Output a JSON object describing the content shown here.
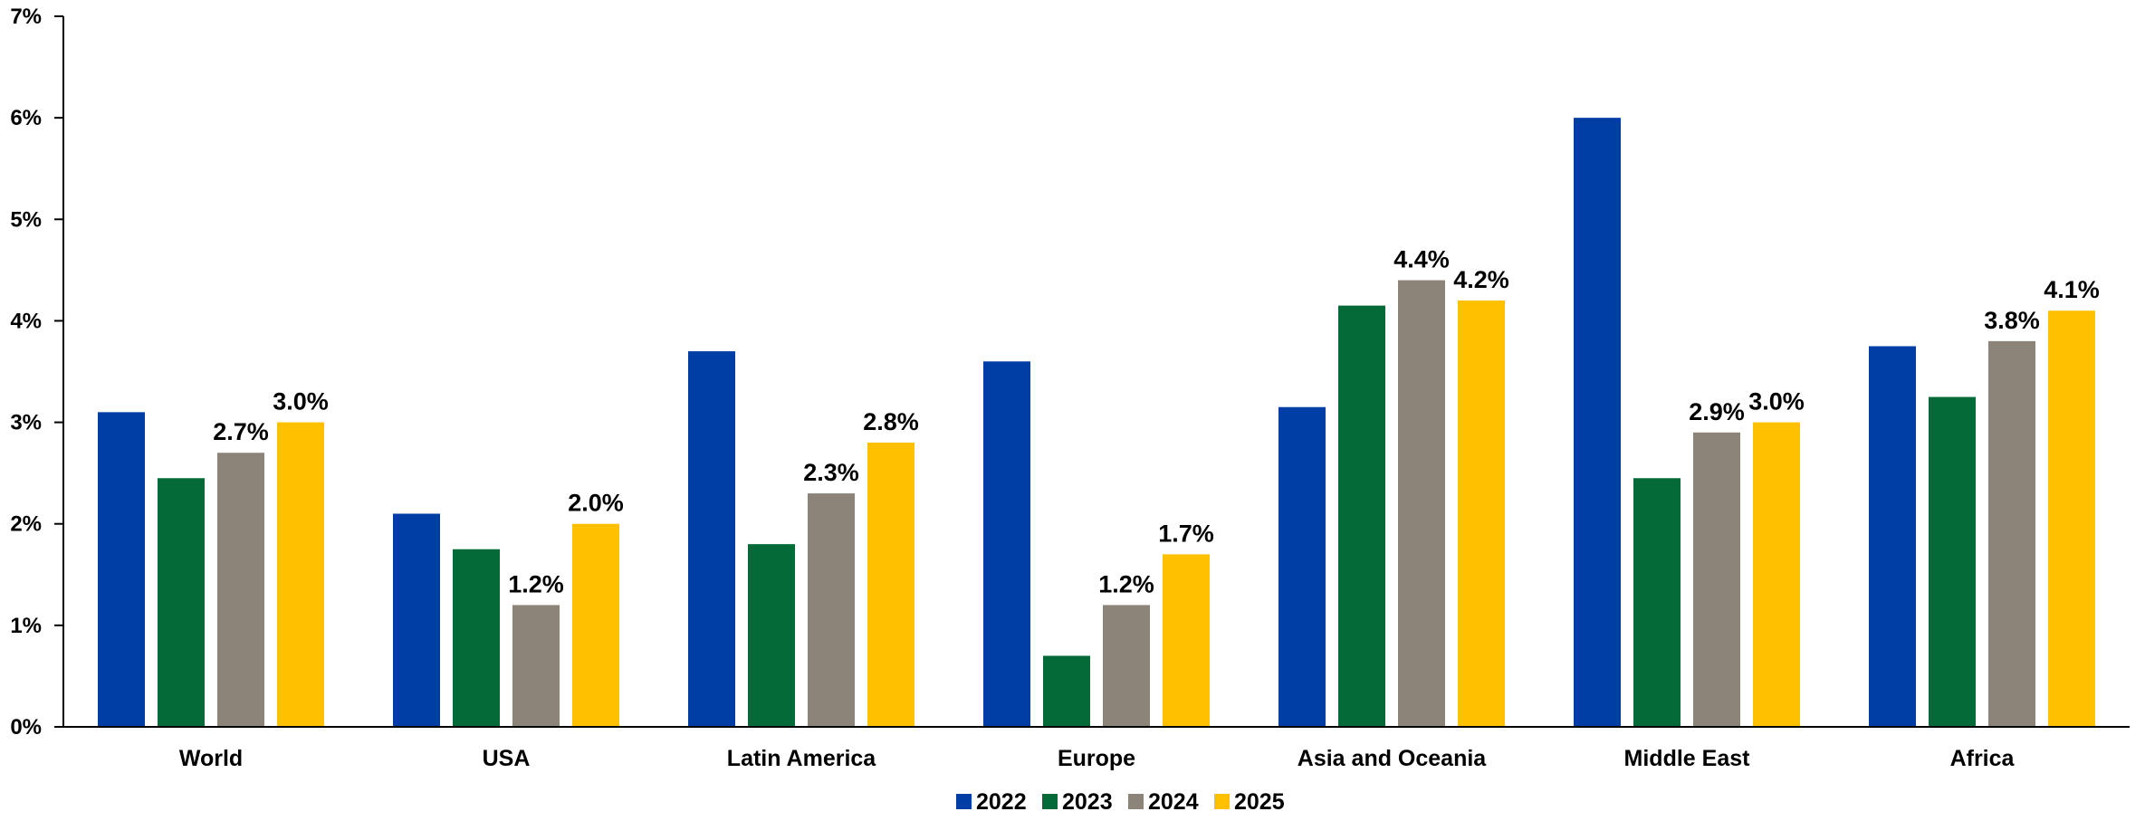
{
  "chart_data": {
    "type": "bar",
    "categories": [
      "World",
      "USA",
      "Latin America",
      "Europe",
      "Asia and Oceania",
      "Middle East",
      "Africa"
    ],
    "series": [
      {
        "name": "2022",
        "color": "#003DA5",
        "values": [
          3.1,
          2.1,
          3.7,
          3.6,
          3.15,
          6.0,
          3.75
        ]
      },
      {
        "name": "2023",
        "color": "#046A38",
        "values": [
          2.45,
          1.75,
          1.8,
          0.7,
          4.15,
          2.45,
          3.25
        ]
      },
      {
        "name": "2024",
        "color": "#8C8479",
        "values": [
          2.7,
          1.2,
          2.3,
          1.2,
          4.4,
          2.9,
          3.8
        ]
      },
      {
        "name": "2025",
        "color": "#FFC000",
        "values": [
          3.0,
          2.0,
          2.8,
          1.7,
          4.2,
          3.0,
          4.1
        ]
      }
    ],
    "data_labels": {
      "2024": [
        "2.7%",
        "1.2%",
        "2.3%",
        "1.2%",
        "4.4%",
        "2.9%",
        "3.8%"
      ],
      "2025": [
        "3.0%",
        "2.0%",
        "2.8%",
        "1.7%",
        "4.2%",
        "3.0%",
        "4.1%"
      ]
    },
    "y_ticks": [
      "0%",
      "1%",
      "2%",
      "3%",
      "4%",
      "5%",
      "6%",
      "7%"
    ],
    "ylim": [
      0,
      7
    ],
    "title": "",
    "xlabel": "",
    "ylabel": "",
    "grid": false,
    "legend_position": "bottom-center"
  }
}
